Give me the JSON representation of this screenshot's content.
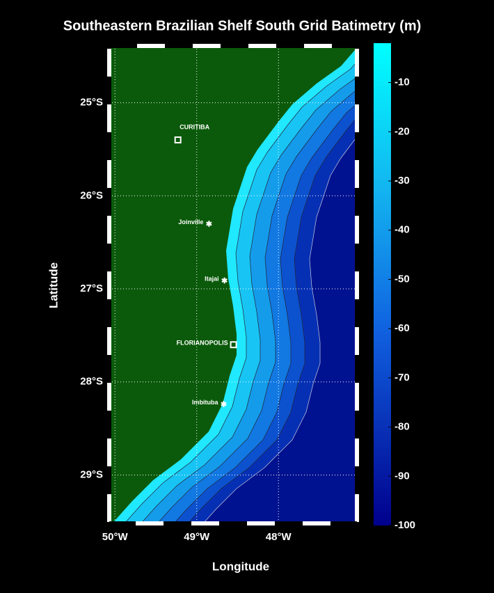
{
  "map": {
    "title": "Southeastern Brazilian Shelf South Grid Batimetry (m)",
    "x_label": "Longitude",
    "y_label": "Latitude",
    "lonlim": [
      -50.07,
      -47.04
    ],
    "latlim": [
      -29.52,
      -24.39
    ],
    "lonticks": [
      {
        "value": -50,
        "label": "50°W"
      },
      {
        "value": -49,
        "label": "49°W"
      },
      {
        "value": -48,
        "label": "48°W"
      }
    ],
    "latticks": [
      {
        "value": -25,
        "label": "25°S"
      },
      {
        "value": -26,
        "label": "26°S"
      },
      {
        "value": -27,
        "label": "27°S"
      },
      {
        "value": -28,
        "label": "28°S"
      },
      {
        "value": -29,
        "label": "29°S"
      }
    ],
    "grid": true,
    "colorbar": {
      "clim": [
        -100,
        -2
      ],
      "ticks": [
        -10,
        -20,
        -30,
        -40,
        -50,
        -60,
        -70,
        -80,
        -90,
        -100
      ]
    },
    "cities": [
      {
        "name": "CURITIBA",
        "lon": -49.23,
        "lat": -25.4,
        "marker": "square"
      },
      {
        "name": "Joinville",
        "lon": -48.85,
        "lat": -26.3,
        "marker": "star"
      },
      {
        "name": "Itajai",
        "lon": -48.66,
        "lat": -26.91,
        "marker": "star"
      },
      {
        "name": "FLORIANOPOLIS",
        "lon": -48.55,
        "lat": -27.6,
        "marker": "square"
      },
      {
        "name": "Imbituba",
        "lon": -48.67,
        "lat": -28.24,
        "marker": "star"
      }
    ]
  }
}
